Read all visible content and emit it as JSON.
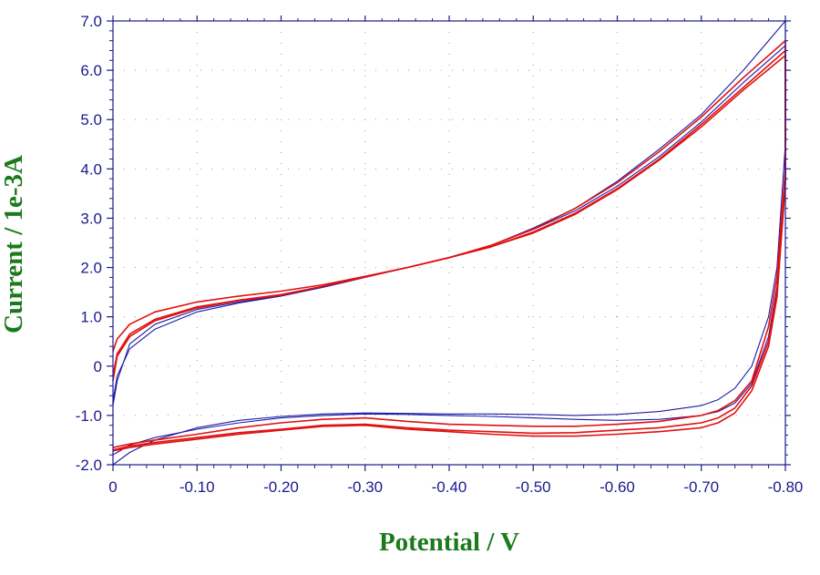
{
  "chart_data": {
    "type": "line",
    "title": "",
    "xlabel": "Potential / V",
    "ylabel": "Current / 1e-3A",
    "xlim": [
      0,
      -0.8
    ],
    "ylim": [
      -2.0,
      7.0
    ],
    "x_ticks": [
      "0",
      "-0.10",
      "-0.20",
      "-0.30",
      "-0.40",
      "-0.50",
      "-0.60",
      "-0.70",
      "-0.80"
    ],
    "y_ticks": [
      "-2.0",
      "-1.0",
      "0",
      "1.0",
      "2.0",
      "3.0",
      "4.0",
      "5.0",
      "6.0",
      "7.0"
    ],
    "grid": true,
    "colors": {
      "axis": "#1a1a8c",
      "label": "#1b7a1b",
      "series_red": "#e01010",
      "series_blue": "#1a1aa8"
    },
    "series": [
      {
        "color": "#1a1aa8",
        "x": [
          0,
          -0.005,
          -0.02,
          -0.05,
          -0.1,
          -0.15,
          -0.2,
          -0.25,
          -0.3,
          -0.35,
          -0.4,
          -0.45,
          -0.5,
          -0.55,
          -0.6,
          -0.65,
          -0.7,
          -0.75,
          -0.8,
          -0.8,
          -0.79,
          -0.78,
          -0.76,
          -0.74,
          -0.72,
          -0.7,
          -0.65,
          -0.6,
          -0.55,
          -0.5,
          -0.45,
          -0.4,
          -0.35,
          -0.3,
          -0.25,
          -0.2,
          -0.15,
          -0.1,
          -0.05,
          -0.02,
          0
        ],
        "y": [
          -0.7,
          -0.2,
          0.35,
          0.75,
          1.1,
          1.28,
          1.42,
          1.6,
          1.8,
          2.0,
          2.2,
          2.45,
          2.8,
          3.2,
          3.75,
          4.4,
          5.1,
          6.0,
          7.0,
          4.5,
          2.0,
          1.0,
          0.0,
          -0.45,
          -0.68,
          -0.8,
          -0.92,
          -0.98,
          -1.0,
          -0.98,
          -0.97,
          -0.97,
          -0.96,
          -0.95,
          -0.97,
          -1.02,
          -1.1,
          -1.25,
          -1.5,
          -1.75,
          -2.0
        ]
      },
      {
        "color": "#1a1aa8",
        "x": [
          0,
          -0.005,
          -0.02,
          -0.05,
          -0.1,
          -0.15,
          -0.2,
          -0.25,
          -0.3,
          -0.35,
          -0.4,
          -0.45,
          -0.5,
          -0.55,
          -0.6,
          -0.65,
          -0.7,
          -0.75,
          -0.8,
          -0.8,
          -0.79,
          -0.78,
          -0.76,
          -0.74,
          -0.72,
          -0.7,
          -0.65,
          -0.6,
          -0.55,
          -0.5,
          -0.45,
          -0.4,
          -0.35,
          -0.3,
          -0.25,
          -0.2,
          -0.15,
          -0.1,
          -0.05,
          -0.02,
          0
        ],
        "y": [
          -0.8,
          -0.3,
          0.45,
          0.85,
          1.15,
          1.3,
          1.43,
          1.6,
          1.8,
          2.0,
          2.2,
          2.45,
          2.77,
          3.15,
          3.65,
          4.25,
          4.95,
          5.75,
          6.5,
          4.0,
          1.6,
          0.6,
          -0.35,
          -0.75,
          -0.92,
          -1.0,
          -1.08,
          -1.1,
          -1.08,
          -1.05,
          -1.02,
          -1.0,
          -0.98,
          -0.97,
          -1.0,
          -1.05,
          -1.15,
          -1.28,
          -1.45,
          -1.6,
          -1.8
        ]
      },
      {
        "color": "#e01010",
        "x": [
          0,
          -0.005,
          -0.02,
          -0.05,
          -0.1,
          -0.15,
          -0.2,
          -0.25,
          -0.3,
          -0.35,
          -0.4,
          -0.45,
          -0.5,
          -0.55,
          -0.6,
          -0.65,
          -0.7,
          -0.75,
          -0.8,
          -0.8,
          -0.79,
          -0.78,
          -0.76,
          -0.74,
          -0.72,
          -0.7,
          -0.65,
          -0.6,
          -0.55,
          -0.5,
          -0.45,
          -0.4,
          -0.35,
          -0.3,
          -0.25,
          -0.2,
          -0.15,
          -0.1,
          -0.05,
          -0.02,
          0
        ],
        "y": [
          0.3,
          0.55,
          0.85,
          1.1,
          1.3,
          1.42,
          1.52,
          1.65,
          1.82,
          2.0,
          2.2,
          2.45,
          2.78,
          3.2,
          3.72,
          4.35,
          5.05,
          5.85,
          6.6,
          4.0,
          1.8,
          0.8,
          -0.3,
          -0.7,
          -0.9,
          -1.0,
          -1.12,
          -1.18,
          -1.22,
          -1.22,
          -1.2,
          -1.18,
          -1.12,
          -1.05,
          -1.08,
          -1.15,
          -1.25,
          -1.38,
          -1.5,
          -1.58,
          -1.65
        ]
      },
      {
        "color": "#e01010",
        "x": [
          0,
          -0.005,
          -0.02,
          -0.05,
          -0.1,
          -0.15,
          -0.2,
          -0.25,
          -0.3,
          -0.35,
          -0.4,
          -0.45,
          -0.5,
          -0.55,
          -0.6,
          -0.65,
          -0.7,
          -0.75,
          -0.8,
          -0.8,
          -0.79,
          -0.78,
          -0.76,
          -0.74,
          -0.72,
          -0.7,
          -0.65,
          -0.6,
          -0.55,
          -0.5,
          -0.45,
          -0.4,
          -0.35,
          -0.3,
          -0.25,
          -0.2,
          -0.15,
          -0.1,
          -0.05,
          -0.02,
          0
        ],
        "y": [
          -0.2,
          0.25,
          0.65,
          0.95,
          1.2,
          1.34,
          1.45,
          1.62,
          1.81,
          2.0,
          2.2,
          2.42,
          2.72,
          3.1,
          3.6,
          4.2,
          4.9,
          5.65,
          6.4,
          3.8,
          1.5,
          0.5,
          -0.4,
          -0.85,
          -1.05,
          -1.15,
          -1.25,
          -1.3,
          -1.35,
          -1.36,
          -1.33,
          -1.3,
          -1.25,
          -1.18,
          -1.2,
          -1.28,
          -1.35,
          -1.45,
          -1.55,
          -1.62,
          -1.7
        ]
      },
      {
        "color": "#e01010",
        "x": [
          0,
          -0.005,
          -0.02,
          -0.05,
          -0.1,
          -0.15,
          -0.2,
          -0.25,
          -0.3,
          -0.35,
          -0.4,
          -0.45,
          -0.5,
          -0.55,
          -0.6,
          -0.65,
          -0.7,
          -0.75,
          -0.8,
          -0.8,
          -0.79,
          -0.78,
          -0.76,
          -0.74,
          -0.72,
          -0.7,
          -0.65,
          -0.6,
          -0.55,
          -0.5,
          -0.45,
          -0.4,
          -0.35,
          -0.3,
          -0.25,
          -0.2,
          -0.15,
          -0.1,
          -0.05,
          -0.02,
          0
        ],
        "y": [
          -0.3,
          0.2,
          0.6,
          0.92,
          1.18,
          1.33,
          1.44,
          1.62,
          1.81,
          2.0,
          2.2,
          2.42,
          2.7,
          3.08,
          3.58,
          4.18,
          4.85,
          5.6,
          6.3,
          3.7,
          1.4,
          0.4,
          -0.5,
          -0.95,
          -1.15,
          -1.25,
          -1.33,
          -1.38,
          -1.42,
          -1.42,
          -1.38,
          -1.33,
          -1.28,
          -1.2,
          -1.22,
          -1.3,
          -1.38,
          -1.48,
          -1.58,
          -1.65,
          -1.72
        ]
      }
    ]
  }
}
